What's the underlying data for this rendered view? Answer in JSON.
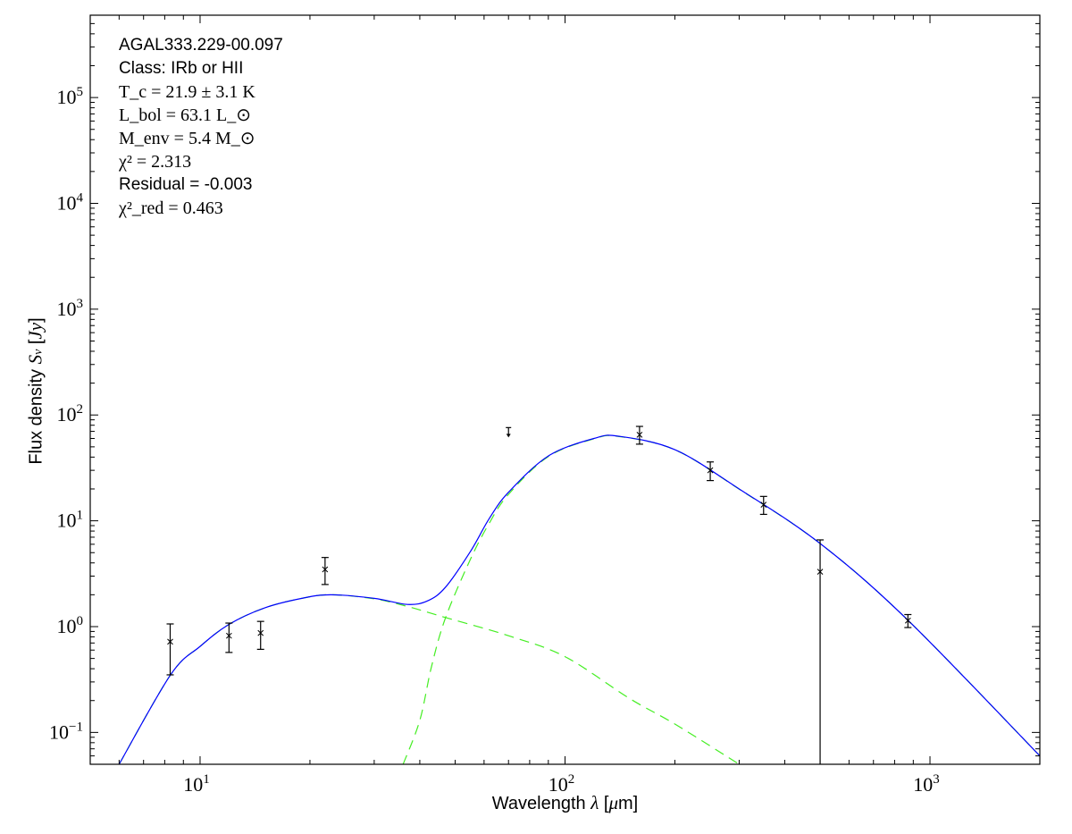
{
  "chart_data": {
    "type": "scatter",
    "x_scale": "log",
    "y_scale": "log",
    "xlim": [
      5,
      2000
    ],
    "ylim": [
      0.05,
      600000
    ],
    "grid": false,
    "xlabel": "Wavelength λ [μm]",
    "xlabel_parts": {
      "pre": "Wavelength ",
      "sym": "λ",
      "post": " [",
      "mu": "μ",
      "unit": "m]"
    },
    "ylabel": "Flux density S_ν [Jy]",
    "ylabel_parts": {
      "pre": "Flux density ",
      "sym": "S",
      "sub": "ν",
      "post": " [",
      "unit": "Jy",
      "close": "]"
    },
    "x_ticks": [
      {
        "base": "10",
        "exp": "1",
        "value": 10
      },
      {
        "base": "10",
        "exp": "2",
        "value": 100
      },
      {
        "base": "10",
        "exp": "3",
        "value": 1000
      }
    ],
    "y_ticks": [
      {
        "base": "10",
        "exp": "−1",
        "value": 0.1
      },
      {
        "base": "10",
        "exp": "0",
        "value": 1
      },
      {
        "base": "10",
        "exp": "1",
        "value": 10
      },
      {
        "base": "10",
        "exp": "2",
        "value": 100
      },
      {
        "base": "10",
        "exp": "3",
        "value": 1000
      },
      {
        "base": "10",
        "exp": "4",
        "value": 10000
      },
      {
        "base": "10",
        "exp": "5",
        "value": 100000
      }
    ],
    "annotations": {
      "source": "AGAL333.229-00.097",
      "class": "Class: IRb or HII",
      "tc": "T_c = 21.9 ± 3.1 K",
      "lbol": "L_bol = 63.1 L_⊙",
      "menv": "M_env = 5.4 M_⊙",
      "chi2": "χ² = 2.313",
      "residual": "Residual = -0.003",
      "chi2red": "χ²_red = 0.463"
    },
    "points": [
      {
        "x": 8.28,
        "y": 0.72,
        "lo": 0.35,
        "hi": 1.06
      },
      {
        "x": 12,
        "y": 0.82,
        "lo": 0.57,
        "hi": 1.08
      },
      {
        "x": 14.65,
        "y": 0.87,
        "lo": 0.61,
        "hi": 1.12
      },
      {
        "x": 22,
        "y": 3.47,
        "lo": 2.5,
        "hi": 4.5
      },
      {
        "x": 160,
        "y": 65,
        "lo": 53,
        "hi": 78
      },
      {
        "x": 250,
        "y": 30,
        "lo": 24,
        "hi": 36
      },
      {
        "x": 350,
        "y": 14.2,
        "lo": 11.5,
        "hi": 17
      },
      {
        "x": 500,
        "y": 3.3,
        "lo": 0.0,
        "hi": 6.6
      },
      {
        "x": 870,
        "y": 1.14,
        "lo": 0.98,
        "hi": 1.3
      }
    ],
    "upper_limits": [
      {
        "x": 70,
        "y": 76
      }
    ],
    "series": [
      {
        "style": "solid",
        "color": "#0000ff",
        "x": [
          6.0,
          8.3,
          10,
          12,
          15,
          19,
          22.8,
          30,
          37,
          42,
          47,
          55,
          62,
          70,
          90,
          120,
          140,
          200,
          300,
          500,
          870,
          2000
        ],
        "y": [
          0.05,
          0.35,
          0.65,
          1.05,
          1.5,
          1.85,
          2.0,
          1.85,
          1.62,
          1.75,
          2.35,
          5.1,
          10.5,
          18.6,
          41,
          60,
          63,
          47,
          20,
          6.1,
          1.15,
          0.06
        ]
      },
      {
        "style": "dashed",
        "color": "#44ee22",
        "x": [
          6.0,
          8.3,
          10,
          12,
          15,
          19,
          22.8,
          30,
          37,
          47,
          70,
          100,
          150,
          200,
          300
        ],
        "y": [
          0.05,
          0.35,
          0.65,
          1.05,
          1.5,
          1.85,
          2.0,
          1.83,
          1.55,
          1.22,
          0.82,
          0.52,
          0.21,
          0.12,
          0.05
        ]
      },
      {
        "style": "dashed",
        "color": "#44ee22",
        "x": [
          36,
          40,
          43,
          47,
          55,
          62,
          70,
          90,
          120,
          140,
          200,
          300,
          500,
          870,
          2000
        ],
        "y": [
          0.05,
          0.13,
          0.41,
          1.2,
          4.3,
          9.5,
          17.8,
          40.5,
          59.5,
          62.7,
          46.9,
          19.9,
          6.1,
          1.15,
          0.06
        ]
      }
    ]
  }
}
